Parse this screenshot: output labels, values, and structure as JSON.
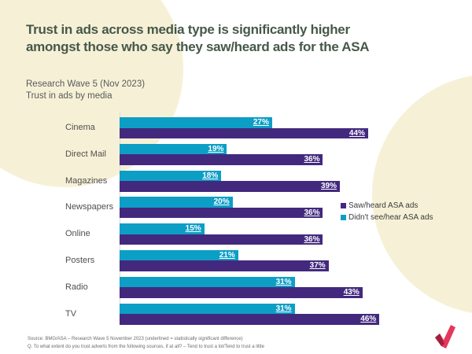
{
  "page": {
    "title": "Trust in ads across media type is significantly higher\namongst those who say they saw/heard ads for the ASA",
    "subtitle": "Research Wave 5 (Nov 2023)\nTrust in ads by media"
  },
  "chart_data": {
    "type": "bar",
    "orientation": "horizontal",
    "title": "Research Wave 5 (Nov 2023) — Trust in ads by media",
    "xlabel": "",
    "ylabel": "",
    "xlim": [
      0,
      50
    ],
    "grid": false,
    "legend_position": "right",
    "value_suffix": "%",
    "data_labels": "inside-end, white, underlined (underlined = statistically significant difference)",
    "categories": [
      "Cinema",
      "Direct Mail",
      "Magazines",
      "Newspapers",
      "Online",
      "Posters",
      "Radio",
      "TV"
    ],
    "series": [
      {
        "name": "Saw/heard ASA ads",
        "color": "#42297e",
        "values": [
          44,
          36,
          39,
          36,
          36,
          37,
          43,
          46
        ]
      },
      {
        "name": "Didn't see/hear ASA ads",
        "color": "#0d9ec6",
        "values": [
          27,
          19,
          18,
          20,
          15,
          21,
          31,
          31
        ]
      }
    ],
    "draw_order": [
      1,
      0
    ]
  },
  "footer": {
    "source": "Source: BMG/ASA – Research Wave 5 November 2023 (underlined = statistically significant difference)\nQ. To what extent do you trust adverts from the following sources, if at all? – Tend to trust a lot/Tend to trust a little"
  },
  "branding": {
    "logo": "asa-checkmark",
    "logo_color": "#e5375c",
    "logo_shade_color": "#a2203e"
  },
  "theme": {
    "background": "#ffffff",
    "accent_cream": "#f6f1d6",
    "title_color": "#465849",
    "axis_color": "#d9d9d9"
  }
}
